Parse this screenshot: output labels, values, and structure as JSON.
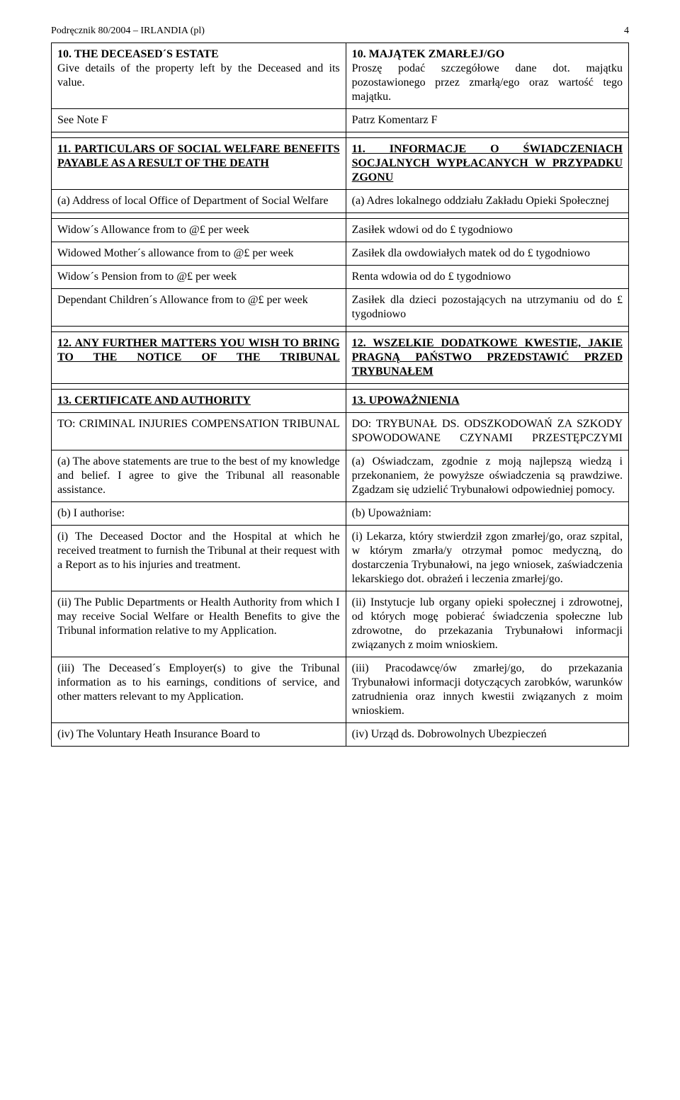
{
  "header": {
    "running_title": "Podręcznik 80/2004 – IRLANDIA (pl)",
    "page_no": "4"
  },
  "rows": [
    {
      "left": {
        "segments": [
          {
            "text": "10. THE DECEASED´S ESTATE",
            "bold": true,
            "underline": false,
            "br_after": true
          },
          {
            "text": "Give details of the property left by the Deceased and its value."
          }
        ]
      },
      "right": {
        "segments": [
          {
            "text": "10. MAJĄTEK ZMARŁEJ/GO",
            "bold": true,
            "underline": false,
            "br_after": true
          },
          {
            "text": "Proszę podać szczegółowe dane dot. majątku pozostawionego przez zmarłą/ego oraz wartość tego majątku."
          }
        ]
      }
    },
    {
      "left": {
        "segments": [
          {
            "text": "See Note F"
          }
        ]
      },
      "right": {
        "segments": [
          {
            "text": "Patrz Komentarz F"
          }
        ]
      }
    },
    {
      "blank": true
    },
    {
      "left": {
        "segments": [
          {
            "text": "11. PARTICULARS OF SOCIAL WELFARE BENEFITS PAYABLE AS A RESULT OF THE DEATH",
            "bold": true,
            "underline": true
          }
        ]
      },
      "right": {
        "justify_spread": true,
        "segments": [
          {
            "text": "11. INFORMACJE O ŚWIADCZENIACH SOCJALNYCH WYPŁACANYCH W PRZYPADKU ZGONU",
            "bold": true,
            "underline": true
          }
        ]
      }
    },
    {
      "left": {
        "segments": [
          {
            "text": "(a) Address of local Office of Department of Social Welfare"
          }
        ]
      },
      "right": {
        "segments": [
          {
            "text": "(a) Adres lokalnego oddziału Zakładu Opieki Społecznej"
          }
        ]
      }
    },
    {
      "blank": true
    },
    {
      "left": {
        "segments": [
          {
            "text": "Widow´s Allowance from  to  @£  per week"
          }
        ]
      },
      "right": {
        "segments": [
          {
            "text": "Zasiłek wdowi od  do  £ tygodniowo"
          }
        ]
      }
    },
    {
      "left": {
        "segments": [
          {
            "text": "Widowed Mother´s allowance from  to  @£  per week"
          }
        ]
      },
      "right": {
        "segments": [
          {
            "text": "Zasiłek dla owdowiałych matek od  do  £ tygodniowo"
          }
        ]
      }
    },
    {
      "left": {
        "segments": [
          {
            "text": "Widow´s Pension from  to  @£  per week"
          }
        ]
      },
      "right": {
        "segments": [
          {
            "text": "Renta wdowia od  do  £ tygodniowo"
          }
        ]
      }
    },
    {
      "left": {
        "segments": [
          {
            "text": "Dependant Children´s Allowance from  to  @£ per week"
          }
        ]
      },
      "right": {
        "segments": [
          {
            "text": "Zasiłek dla dzieci pozostających na utrzymaniu od  do  £ tygodniowo"
          }
        ]
      }
    },
    {
      "blank": true
    },
    {
      "left": {
        "justify_spread": true,
        "segments": [
          {
            "text": "12. ANY FURTHER MATTERS YOU WISH TO BRING TO THE NOTICE OF THE TRIBUNAL",
            "bold": true,
            "underline": true
          }
        ]
      },
      "right": {
        "justify_spread": true,
        "segments": [
          {
            "text": "12. WSZELKIE DODATKOWE KWESTIE, JAKIE PRAGNĄ PAŃSTWO PRZEDSTAWIĆ PRZED TRYBUNAŁEM",
            "bold": true,
            "underline": true
          }
        ]
      }
    },
    {
      "blank": true
    },
    {
      "left": {
        "segments": [
          {
            "text": "13. CERTIFICATE AND AUTHORITY",
            "bold": true,
            "underline": true
          }
        ]
      },
      "right": {
        "segments": [
          {
            "text": "13. UPOWAŻNIENIA",
            "bold": true,
            "underline": true
          }
        ]
      }
    },
    {
      "left": {
        "justify_spread": true,
        "segments": [
          {
            "text": "TO: CRIMINAL INJURIES COMPENSATION TRIBUNAL"
          }
        ]
      },
      "right": {
        "justify_spread": true,
        "segments": [
          {
            "text": "DO: TRYBUNAŁ DS. ODSZKODOWAŃ ZA SZKODY SPOWODOWANE CZYNAMI PRZESTĘPCZYMI"
          }
        ]
      }
    },
    {
      "left": {
        "segments": [
          {
            "text": "(a) The above statements are true to the best of my knowledge and belief. I agree to give the Tribunal all reasonable assistance."
          }
        ]
      },
      "right": {
        "segments": [
          {
            "text": "(a) Oświadczam, zgodnie z moją najlepszą wiedzą i przekonaniem, że powyższe oświadczenia są prawdziwe. Zgadzam się udzielić Trybunałowi odpowiedniej pomocy."
          }
        ]
      }
    },
    {
      "left": {
        "segments": [
          {
            "text": "(b) I authorise:"
          }
        ]
      },
      "right": {
        "segments": [
          {
            "text": "(b) Upoważniam:"
          }
        ]
      }
    },
    {
      "left": {
        "segments": [
          {
            "text": "(i) The Deceased Doctor and the Hospital at which he received treatment to furnish the Tribunal at their request with a Report as to his injuries and treatment."
          }
        ]
      },
      "right": {
        "segments": [
          {
            "text": "(i) Lekarza, który stwierdził zgon zmarłej/go, oraz szpital, w którym zmarła/y otrzymał pomoc medyczną, do dostarczenia Trybunałowi, na jego wniosek, zaświadczenia lekarskiego dot. obrażeń i leczenia zmarłej/go."
          }
        ]
      }
    },
    {
      "left": {
        "segments": [
          {
            "text": "(ii) The Public Departments or Health Authority from which I may receive Social Welfare or Health Benefits to give the Tribunal information relative to my Application."
          }
        ]
      },
      "right": {
        "segments": [
          {
            "text": "(ii) Instytucje lub organy opieki społecznej i zdrowotnej, od których mogę pobierać świadczenia społeczne lub zdrowotne, do przekazania Trybunałowi informacji związanych z moim wnioskiem."
          }
        ]
      }
    },
    {
      "left": {
        "segments": [
          {
            "text": "(iii) The Deceased´s Employer(s) to give the Tribunal information as to his earnings, conditions of service, and other matters relevant to my Application."
          }
        ]
      },
      "right": {
        "segments": [
          {
            "text": "(iii) Pracodawcę/ów zmarłej/go, do przekazania Trybunałowi informacji dotyczących zarobków, warunków zatrudnienia oraz innych kwestii związanych z moim wnioskiem."
          }
        ]
      }
    },
    {
      "left": {
        "segments": [
          {
            "text": "(iv) The Voluntary Heath Insurance Board to"
          }
        ]
      },
      "right": {
        "segments": [
          {
            "text": "(iv) Urząd ds. Dobrowolnych Ubezpieczeń"
          }
        ]
      }
    }
  ]
}
